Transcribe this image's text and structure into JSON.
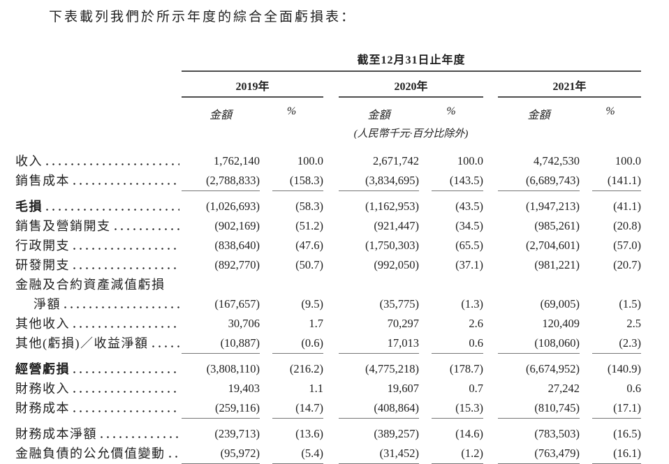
{
  "title": "下表載列我們於所示年度的綜合全面虧損表：",
  "table": {
    "period_header": "截至12月31日止年度",
    "years": [
      "2019年",
      "2020年",
      "2021年"
    ],
    "amount_label": "金額",
    "percent_label": "%",
    "note": "(人民幣千元·百分比除外)",
    "rows": [
      {
        "label": "收入",
        "values": [
          "1,762,140",
          "100.0",
          "2,671,742",
          "100.0",
          "4,742,530",
          "100.0"
        ]
      },
      {
        "label": "銷售成本",
        "rule_below": true,
        "values": [
          "(2,788,833)",
          "(158.3)",
          "(3,834,695)",
          "(143.5)",
          "(6,689,743)",
          "(141.1)"
        ]
      },
      {
        "label": "毛損",
        "bold": true,
        "space_above": true,
        "values": [
          "(1,026,693)",
          "(58.3)",
          "(1,162,953)",
          "(43.5)",
          "(1,947,213)",
          "(41.1)"
        ]
      },
      {
        "label": "銷售及營銷開支",
        "values": [
          "(902,169)",
          "(51.2)",
          "(921,447)",
          "(34.5)",
          "(985,261)",
          "(20.8)"
        ]
      },
      {
        "label": "行政開支",
        "values": [
          "(838,640)",
          "(47.6)",
          "(1,750,303)",
          "(65.5)",
          "(2,704,601)",
          "(57.0)"
        ]
      },
      {
        "label": "研發開支",
        "values": [
          "(892,770)",
          "(50.7)",
          "(992,050)",
          "(37.1)",
          "(981,221)",
          "(20.7)"
        ]
      },
      {
        "label": "金融及合約資產減值虧損",
        "no_leader": true,
        "values": [
          "",
          "",
          "",
          "",
          "",
          ""
        ]
      },
      {
        "label": "淨額",
        "indent": true,
        "values": [
          "(167,657)",
          "(9.5)",
          "(35,775)",
          "(1.3)",
          "(69,005)",
          "(1.5)"
        ]
      },
      {
        "label": "其他收入",
        "values": [
          "30,706",
          "1.7",
          "70,297",
          "2.6",
          "120,409",
          "2.5"
        ]
      },
      {
        "label": "其他(虧損)／收益淨額",
        "rule_below": true,
        "values": [
          "(10,887)",
          "(0.6)",
          "17,013",
          "0.6",
          "(108,060)",
          "(2.3)"
        ]
      },
      {
        "label": "經營虧損",
        "bold": true,
        "space_above": true,
        "values": [
          "(3,808,110)",
          "(216.2)",
          "(4,775,218)",
          "(178.7)",
          "(6,674,952)",
          "(140.9)"
        ]
      },
      {
        "label": "財務收入",
        "values": [
          "19,403",
          "1.1",
          "19,607",
          "0.7",
          "27,242",
          "0.6"
        ]
      },
      {
        "label": "財務成本",
        "rule_below": true,
        "values": [
          "(259,116)",
          "(14.7)",
          "(408,864)",
          "(15.3)",
          "(810,745)",
          "(17.1)"
        ]
      },
      {
        "label": "財務成本淨額",
        "space_above": true,
        "values": [
          "(239,713)",
          "(13.6)",
          "(389,257)",
          "(14.6)",
          "(783,503)",
          "(16.5)"
        ]
      },
      {
        "label": "金融負債的公允價值變動",
        "rule_below": true,
        "values": [
          "(95,972)",
          "(5.4)",
          "(31,452)",
          "(1.2)",
          "(763,479)",
          "(16.1)"
        ]
      }
    ]
  }
}
